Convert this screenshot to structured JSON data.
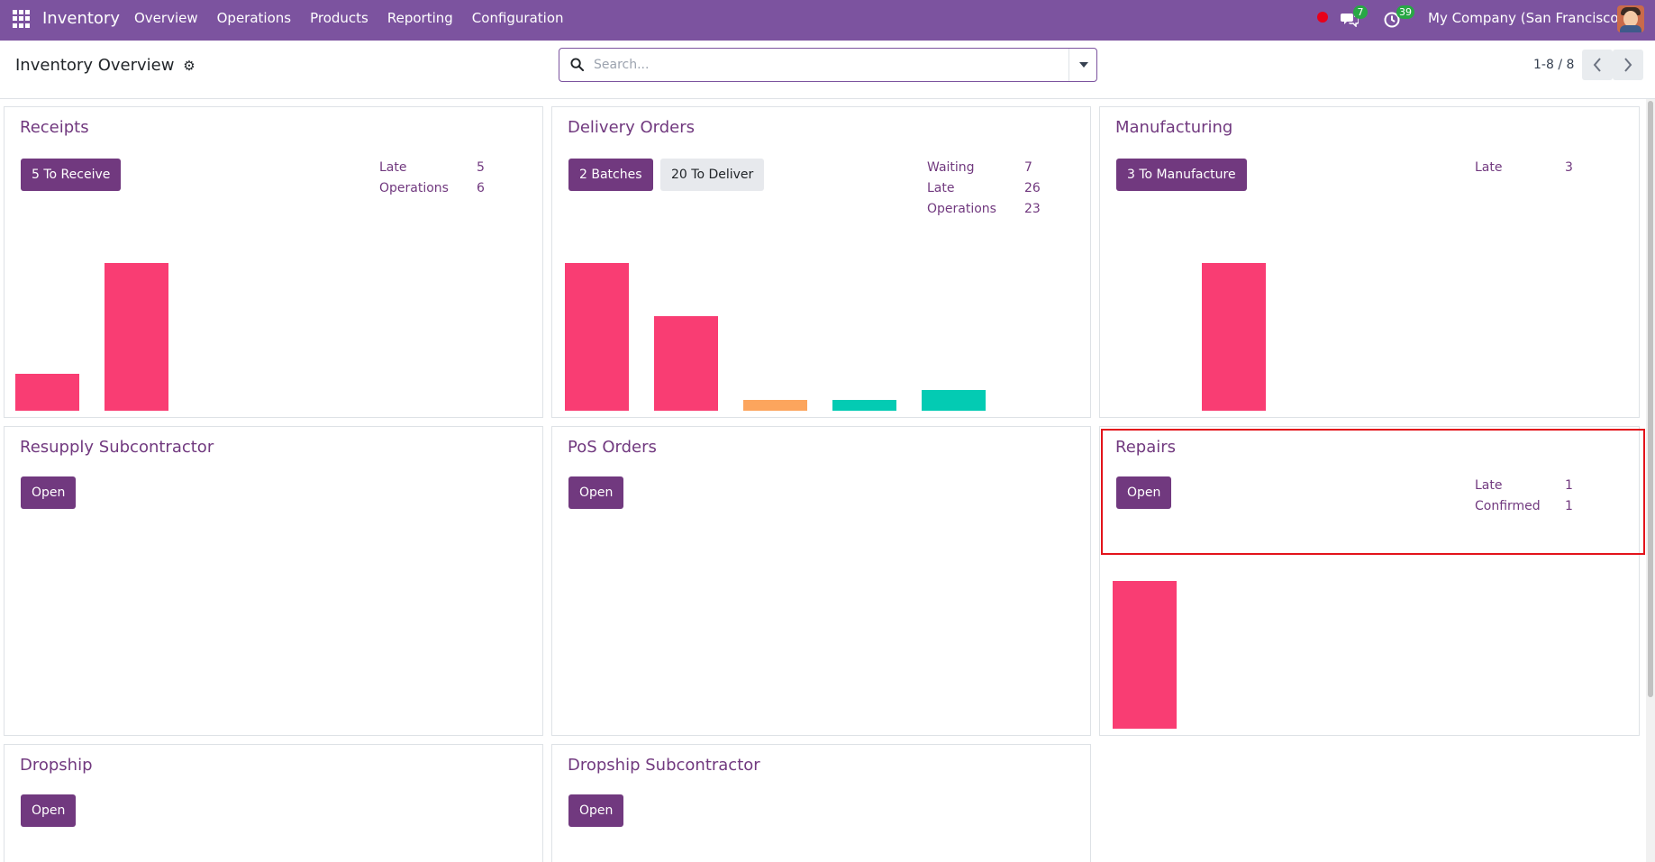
{
  "navbar": {
    "app_name": "Inventory",
    "menu": [
      "Overview",
      "Operations",
      "Products",
      "Reporting",
      "Configuration"
    ],
    "messages_count": "7",
    "activities_count": "39",
    "company": "My Company (San Francisco)"
  },
  "control_panel": {
    "title": "Inventory Overview",
    "search_placeholder": "Search...",
    "pager": "1-8 / 8"
  },
  "cards": {
    "receipts": {
      "title": "Receipts",
      "button": "5 To Receive",
      "stats": [
        {
          "label": "Late",
          "value": "5"
        },
        {
          "label": "Operations",
          "value": "6"
        }
      ],
      "bars": [
        1,
        4
      ]
    },
    "delivery": {
      "title": "Delivery Orders",
      "button": "2 Batches",
      "button2": "20 To Deliver",
      "stats": [
        {
          "label": "Waiting",
          "value": "7"
        },
        {
          "label": "Late",
          "value": "26"
        },
        {
          "label": "Operations",
          "value": "23"
        }
      ],
      "bars": [
        7,
        4.5,
        0.5,
        0.5,
        1
      ]
    },
    "manufacturing": {
      "title": "Manufacturing",
      "button": "3 To Manufacture",
      "stats": [
        {
          "label": "Late",
          "value": "3"
        }
      ],
      "bars": [
        0,
        1
      ]
    },
    "resupply": {
      "title": "Resupply Subcontractor",
      "button": "Open"
    },
    "pos": {
      "title": "PoS Orders",
      "button": "Open"
    },
    "repairs": {
      "title": "Repairs",
      "button": "Open",
      "stats": [
        {
          "label": "Late",
          "value": "1"
        },
        {
          "label": "Confirmed",
          "value": "1"
        }
      ],
      "bars": [
        1
      ]
    },
    "dropship": {
      "title": "Dropship",
      "button": "Open"
    },
    "dropship_sub": {
      "title": "Dropship Subcontractor",
      "button": "Open"
    }
  },
  "colors": {
    "brand": "#7c539f",
    "primary": "#71397f",
    "late": "#f93d73",
    "waiting": "#fca55d",
    "ready": "#03cbb3"
  }
}
